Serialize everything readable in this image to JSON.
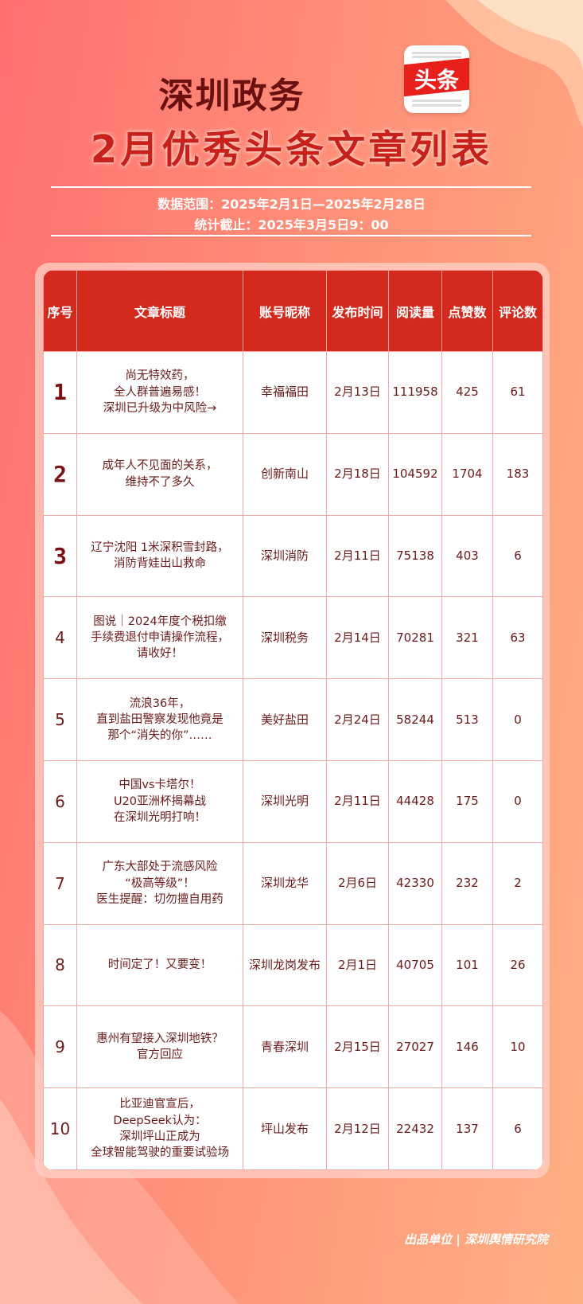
{
  "header": {
    "title_line1": "深圳政务",
    "logo_text": "头条",
    "title_line2": "2月优秀头条文章列表",
    "data_range": "数据范围：2025年2月1日—2025年2月28日",
    "cutoff": "统计截止：2025年3月5日9：00"
  },
  "table": {
    "columns": [
      "序号",
      "文章标题",
      "账号昵称",
      "发布时间",
      "阅读量",
      "点赞数",
      "评论数"
    ],
    "rows": [
      {
        "rank": "1",
        "title": [
          "尚无特效药，",
          "全人群普遍易感！",
          "深圳已升级为中风险→"
        ],
        "account": "幸福福田",
        "date": "2月13日",
        "reads": "111958",
        "likes": "425",
        "comments": "61"
      },
      {
        "rank": "2",
        "title": [
          "成年人不见面的关系，",
          "维持不了多久"
        ],
        "account": "创新南山",
        "date": "2月18日",
        "reads": "104592",
        "likes": "1704",
        "comments": "183"
      },
      {
        "rank": "3",
        "title": [
          "辽宁沈阳 1米深积雪封路，",
          "消防背娃出山救命"
        ],
        "account": "深圳消防",
        "date": "2月11日",
        "reads": "75138",
        "likes": "403",
        "comments": "6"
      },
      {
        "rank": "4",
        "title": [
          "图说｜2024年度个税扣缴",
          "手续费退付申请操作流程，",
          "请收好！"
        ],
        "account": "深圳税务",
        "date": "2月14日",
        "reads": "70281",
        "likes": "321",
        "comments": "63"
      },
      {
        "rank": "5",
        "title": [
          "流浪36年，",
          "直到盐田警察发现他竟是",
          "那个“消失的你”……"
        ],
        "account": "美好盐田",
        "date": "2月24日",
        "reads": "58244",
        "likes": "513",
        "comments": "0"
      },
      {
        "rank": "6",
        "title": [
          "中国vs卡塔尔！",
          "U20亚洲杯揭幕战",
          "在深圳光明打响！"
        ],
        "account": "深圳光明",
        "date": "2月11日",
        "reads": "44428",
        "likes": "175",
        "comments": "0"
      },
      {
        "rank": "7",
        "title": [
          "广东大部处于流感风险",
          "“极高等级”！",
          "医生提醒：切勿擅自用药"
        ],
        "account": "深圳龙华",
        "date": "2月6日",
        "reads": "42330",
        "likes": "232",
        "comments": "2"
      },
      {
        "rank": "8",
        "title": [
          "时间定了！又要变！"
        ],
        "account": "深圳龙岗发布",
        "date": "2月1日",
        "reads": "40705",
        "likes": "101",
        "comments": "26"
      },
      {
        "rank": "9",
        "title": [
          "惠州有望接入深圳地铁？",
          "官方回应"
        ],
        "account": "青春深圳",
        "date": "2月15日",
        "reads": "27027",
        "likes": "146",
        "comments": "10"
      },
      {
        "rank": "10",
        "title": [
          "比亚迪官宣后，",
          "DeepSeek认为：",
          "深圳坪山正成为",
          "全球智能驾驶的重要试验场"
        ],
        "account": "坪山发布",
        "date": "2月12日",
        "reads": "22432",
        "likes": "137",
        "comments": "6"
      }
    ]
  },
  "footer": "出品单位 | 深圳舆情研究院",
  "colors": {
    "header_bg": "#d42a1e",
    "text": "#6e1a1a",
    "title_red": "#c8201a",
    "title_dark": "#6a1010"
  }
}
